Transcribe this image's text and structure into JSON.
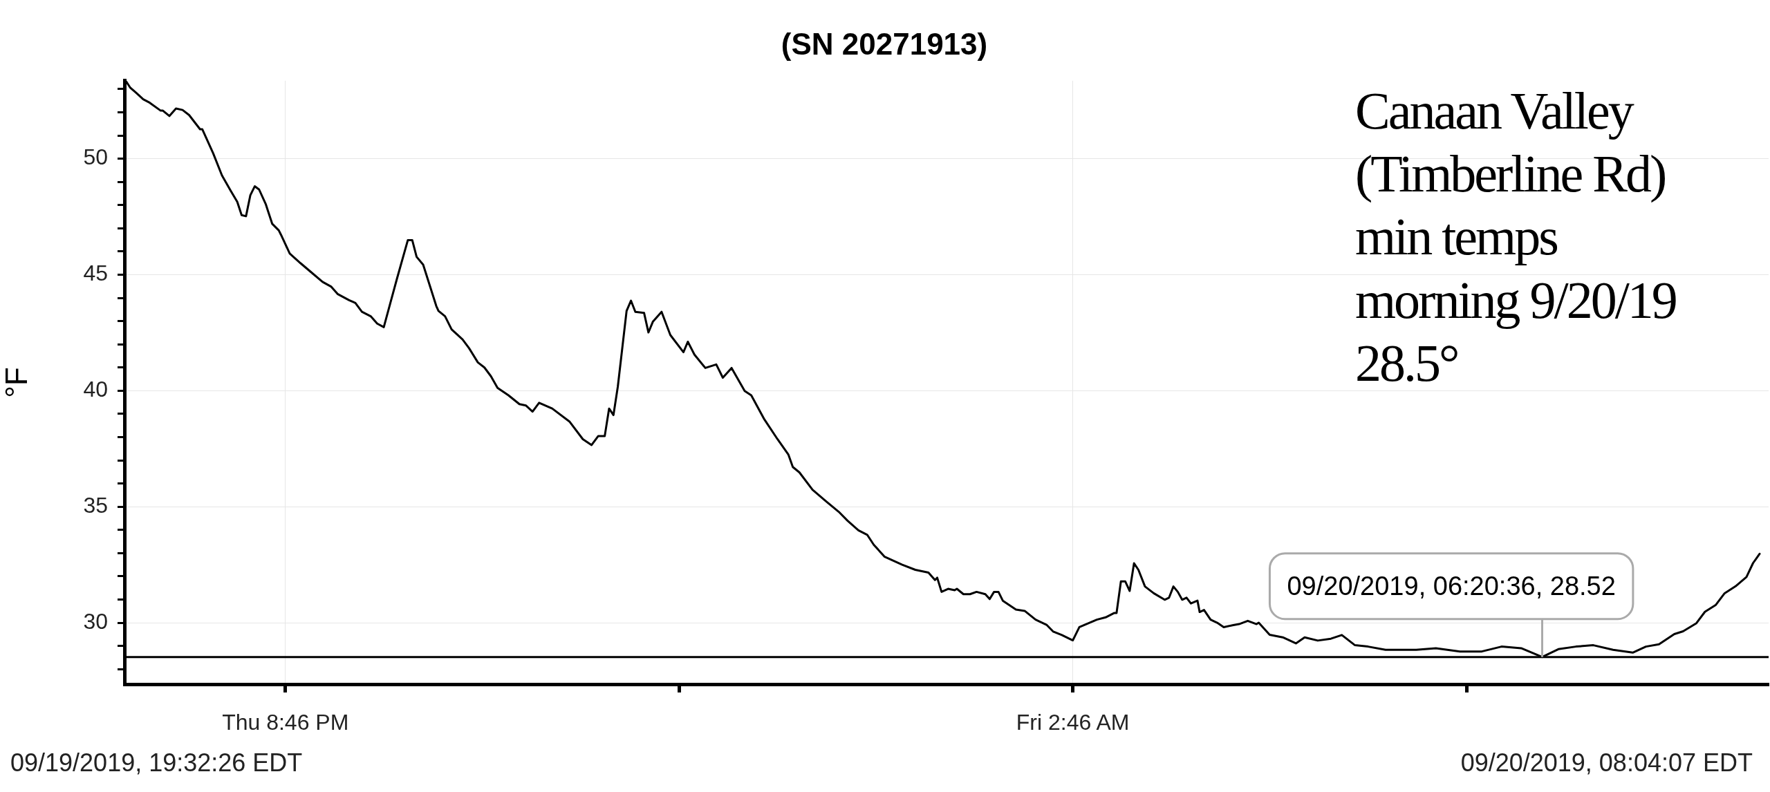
{
  "chart_data": {
    "type": "line",
    "title": "(SN 20271913)",
    "ylabel": "°F",
    "xlim": [
      "2019-09-19T19:32:26",
      "2019-09-20T08:04:07"
    ],
    "xticks": [
      {
        "value": "2019-09-19T20:46",
        "label": "Thu 8:46 PM"
      },
      {
        "value": "2019-09-19T23:46",
        "label": null
      },
      {
        "value": "2019-09-20T02:46",
        "label": "Fri 2:46 AM"
      },
      {
        "value": "2019-09-20T05:46",
        "label": null
      }
    ],
    "ylim": [
      27.35,
      53.36
    ],
    "yticks": [
      {
        "value": 28,
        "label": null
      },
      {
        "value": 29,
        "label": null
      },
      30,
      {
        "value": 31,
        "label": null
      },
      {
        "value": 32,
        "label": null
      },
      {
        "value": 33,
        "label": null
      },
      {
        "value": 34,
        "label": null
      },
      35,
      {
        "value": 36,
        "label": null
      },
      {
        "value": 37,
        "label": null
      },
      {
        "value": 38,
        "label": null
      },
      {
        "value": 39,
        "label": null
      },
      40,
      {
        "value": 41,
        "label": null
      },
      {
        "value": 42,
        "label": null
      },
      {
        "value": 43,
        "label": null
      },
      {
        "value": 44,
        "label": null
      },
      45,
      {
        "value": 46,
        "label": null
      },
      {
        "value": 47,
        "label": null
      },
      {
        "value": 48,
        "label": null
      },
      {
        "value": 49,
        "label": null
      },
      50,
      {
        "value": 51,
        "label": null
      },
      {
        "value": 52,
        "label": null
      },
      {
        "value": 53,
        "label": null
      }
    ],
    "grid": true,
    "legend": false,
    "marker": "none",
    "line_style": "solid",
    "series": [
      {
        "color": "#000000",
        "x": [
          "2019-09-19T19:33",
          "2019-09-19T19:35",
          "2019-09-19T19:38",
          "2019-09-19T19:41",
          "2019-09-19T19:44",
          "2019-09-19T19:49",
          "2019-09-19T19:50",
          "2019-09-19T19:53",
          "2019-09-19T19:56",
          "2019-09-19T19:59",
          "2019-09-19T20:02",
          "2019-09-19T20:07",
          "2019-09-19T20:08",
          "2019-09-19T20:13",
          "2019-09-19T20:17",
          "2019-09-19T20:21",
          "2019-09-19T20:24",
          "2019-09-19T20:26",
          "2019-09-19T20:28",
          "2019-09-19T20:30",
          "2019-09-19T20:32",
          "2019-09-19T20:34",
          "2019-09-19T20:37",
          "2019-09-19T20:38",
          "2019-09-19T20:40",
          "2019-09-19T20:43",
          "2019-09-19T20:44",
          "2019-09-19T20:48",
          "2019-09-19T20:53",
          "2019-09-19T20:57",
          "2019-09-19T21:03",
          "2019-09-19T21:07",
          "2019-09-19T21:10",
          "2019-09-19T21:15",
          "2019-09-19T21:18",
          "2019-09-19T21:21",
          "2019-09-19T21:25",
          "2019-09-19T21:28",
          "2019-09-19T21:31",
          "2019-09-19T21:34",
          "2019-09-19T21:37",
          "2019-09-19T21:42",
          "2019-09-19T21:44",
          "2019-09-19T21:46",
          "2019-09-19T21:49",
          "2019-09-19T21:55",
          "2019-09-19T21:56",
          "2019-09-19T21:59",
          "2019-09-19T22:02",
          "2019-09-19T22:07",
          "2019-09-19T22:10",
          "2019-09-19T22:14",
          "2019-09-19T22:17",
          "2019-09-19T22:20",
          "2019-09-19T22:23",
          "2019-09-19T22:28",
          "2019-09-19T22:33",
          "2019-09-19T22:36",
          "2019-09-19T22:39",
          "2019-09-19T22:42",
          "2019-09-19T22:48",
          "2019-09-19T22:56",
          "2019-09-19T23:02",
          "2019-09-19T23:06",
          "2019-09-19T23:09",
          "2019-09-19T23:12",
          "2019-09-19T23:14",
          "2019-09-19T23:16",
          "2019-09-19T23:18",
          "2019-09-19T23:22",
          "2019-09-19T23:24",
          "2019-09-19T23:26",
          "2019-09-19T23:30",
          "2019-09-19T23:32",
          "2019-09-19T23:34",
          "2019-09-19T23:38",
          "2019-09-19T23:42",
          "2019-09-19T23:48",
          "2019-09-19T23:50",
          "2019-09-19T23:53",
          "2019-09-19T23:58",
          "2019-09-20T00:03",
          "2019-09-20T00:06",
          "2019-09-20T00:10",
          "2019-09-20T00:16",
          "2019-09-20T00:19",
          "2019-09-20T00:25",
          "2019-09-20T00:31",
          "2019-09-20T00:36",
          "2019-09-20T00:38",
          "2019-09-20T00:41",
          "2019-09-20T00:47",
          "2019-09-20T00:53",
          "2019-09-20T00:59",
          "2019-09-20T01:03",
          "2019-09-20T01:08",
          "2019-09-20T01:12",
          "2019-09-20T01:15",
          "2019-09-20T01:20",
          "2019-09-20T01:28",
          "2019-09-20T01:34",
          "2019-09-20T01:40",
          "2019-09-20T01:43",
          "2019-09-20T01:44",
          "2019-09-20T01:46",
          "2019-09-20T01:49",
          "2019-09-20T01:52",
          "2019-09-20T01:53",
          "2019-09-20T01:56",
          "2019-09-20T01:59",
          "2019-09-20T02:02",
          "2019-09-20T02:06",
          "2019-09-20T02:08",
          "2019-09-20T02:10",
          "2019-09-20T02:12",
          "2019-09-20T02:14",
          "2019-09-20T02:20",
          "2019-09-20T02:24",
          "2019-09-20T02:29",
          "2019-09-20T02:34",
          "2019-09-20T02:37",
          "2019-09-20T02:41",
          "2019-09-20T02:46",
          "2019-09-20T02:49",
          "2019-09-20T02:57",
          "2019-09-20T03:01",
          "2019-09-20T03:05",
          "2019-09-20T03:06",
          "2019-09-20T03:08",
          "2019-09-20T03:10",
          "2019-09-20T03:12",
          "2019-09-20T03:14",
          "2019-09-20T03:16",
          "2019-09-20T03:19",
          "2019-09-20T03:23",
          "2019-09-20T03:28",
          "2019-09-20T03:30",
          "2019-09-20T03:32",
          "2019-09-20T03:34",
          "2019-09-20T03:36",
          "2019-09-20T03:38",
          "2019-09-20T03:40",
          "2019-09-20T03:43",
          "2019-09-20T03:44",
          "2019-09-20T03:46",
          "2019-09-20T03:49",
          "2019-09-20T03:52",
          "2019-09-20T03:55",
          "2019-09-20T03:59",
          "2019-09-20T04:02",
          "2019-09-20T04:06",
          "2019-09-20T04:10",
          "2019-09-20T04:11",
          "2019-09-20T04:16",
          "2019-09-20T04:22",
          "2019-09-20T04:28",
          "2019-09-20T04:32",
          "2019-09-20T04:38",
          "2019-09-20T04:44",
          "2019-09-20T04:49",
          "2019-09-20T04:55",
          "2019-09-20T05:01",
          "2019-09-20T05:09",
          "2019-09-20T05:17",
          "2019-09-20T05:23",
          "2019-09-20T05:32",
          "2019-09-20T05:43",
          "2019-09-20T05:53",
          "2019-09-20T06:02",
          "2019-09-20T06:11",
          "2019-09-20T06:20:36",
          "2019-09-20T06:28",
          "2019-09-20T06:36",
          "2019-09-20T06:44",
          "2019-09-20T06:53",
          "2019-09-20T07:02",
          "2019-09-20T07:08",
          "2019-09-20T07:14",
          "2019-09-20T07:21",
          "2019-09-20T07:25",
          "2019-09-20T07:31",
          "2019-09-20T07:35",
          "2019-09-20T07:40",
          "2019-09-20T07:44",
          "2019-09-20T07:49",
          "2019-09-20T07:54",
          "2019-09-20T07:57",
          "2019-09-20T08:00"
        ],
        "values": [
          53.36,
          53.07,
          52.82,
          52.56,
          52.41,
          52.07,
          52.07,
          51.84,
          52.16,
          52.1,
          51.88,
          51.27,
          51.27,
          50.23,
          49.28,
          48.62,
          48.14,
          47.57,
          47.52,
          48.43,
          48.81,
          48.67,
          48.05,
          47.76,
          47.19,
          46.91,
          46.72,
          45.91,
          45.49,
          45.17,
          44.69,
          44.48,
          44.16,
          43.91,
          43.78,
          43.4,
          43.21,
          42.89,
          42.74,
          43.78,
          44.82,
          46.49,
          46.49,
          45.77,
          45.43,
          43.65,
          43.44,
          43.21,
          42.64,
          42.21,
          41.83,
          41.22,
          41.0,
          40.62,
          40.12,
          39.8,
          39.42,
          39.36,
          39.1,
          39.48,
          39.23,
          38.66,
          37.91,
          37.66,
          38.04,
          38.04,
          39.23,
          38.95,
          40.18,
          43.44,
          43.88,
          43.4,
          43.35,
          42.51,
          42.97,
          43.4,
          42.4,
          41.66,
          42.11,
          41.56,
          40.98,
          41.13,
          40.56,
          40.98,
          39.99,
          39.8,
          38.76,
          37.91,
          37.24,
          36.71,
          36.48,
          35.73,
          35.25,
          34.78,
          34.4,
          33.98,
          33.79,
          33.36,
          32.84,
          32.5,
          32.28,
          32.16,
          31.84,
          31.94,
          31.33,
          31.46,
          31.4,
          31.46,
          31.23,
          31.23,
          31.33,
          31.23,
          31.02,
          31.33,
          31.33,
          30.95,
          30.57,
          30.51,
          30.13,
          29.91,
          29.62,
          29.47,
          29.24,
          29.81,
          30.13,
          30.23,
          30.42,
          30.42,
          31.78,
          31.78,
          31.37,
          32.56,
          32.28,
          31.56,
          31.27,
          30.99,
          31.08,
          31.56,
          31.33,
          30.99,
          31.08,
          30.83,
          30.95,
          30.46,
          30.55,
          30.13,
          30.0,
          29.81,
          29.89,
          29.94,
          30.08,
          29.94,
          30.0,
          29.48,
          29.37,
          29.11,
          29.37,
          29.23,
          29.31,
          29.47,
          29.03,
          28.97,
          28.83,
          28.83,
          28.83,
          28.9,
          28.76,
          28.76,
          28.97,
          28.9,
          28.52,
          28.86,
          28.97,
          29.03,
          28.83,
          28.71,
          28.97,
          29.07,
          29.51,
          29.63,
          29.97,
          30.47,
          30.77,
          31.27,
          31.57,
          31.97,
          32.57,
          32.97
        ]
      }
    ],
    "ref_lines": [
      {
        "axis": "y",
        "value": 28.52,
        "color": "#000000"
      }
    ],
    "annotations": [
      "09/19/2019, 19:32:26 EDT",
      "09/20/2019, 08:04:07 EDT",
      "Canaan Valley (Timberline Rd) min temps morning 9/20/19 28.5°",
      {
        "text": "09/20/2019, 06:20:36, 28.52",
        "x": "2019-09-20T06:20:36",
        "y": 28.52
      }
    ]
  }
}
